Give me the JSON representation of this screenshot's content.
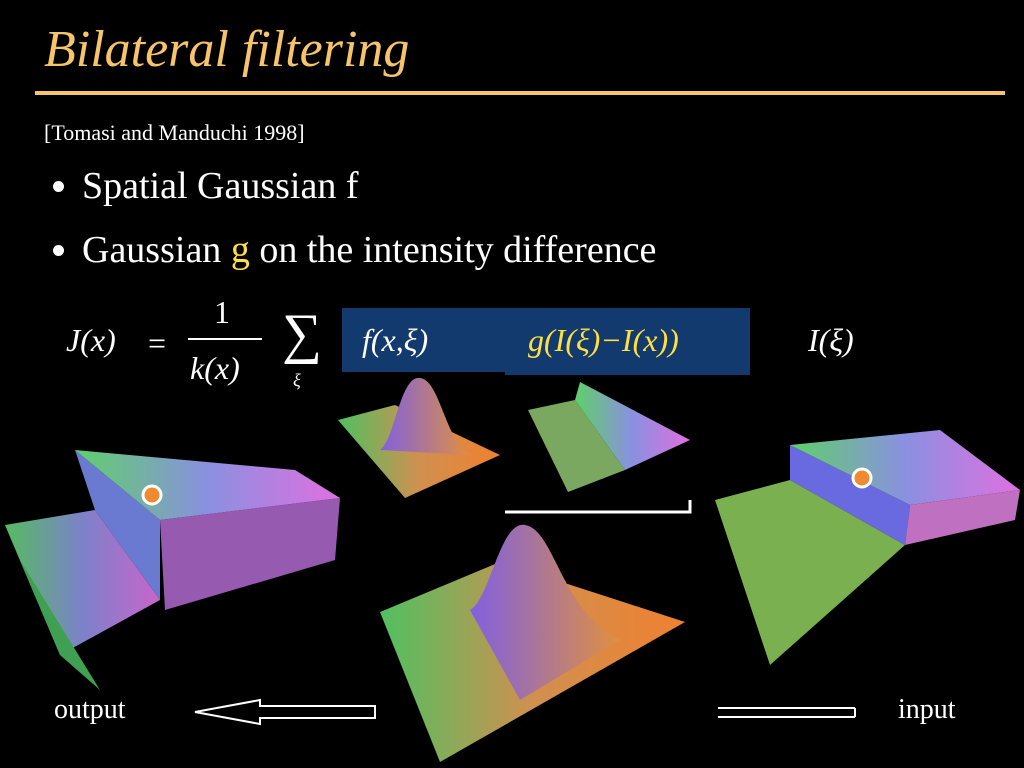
{
  "title": "Bilateral filtering",
  "citation": "[Tomasi and Manduchi 1998]",
  "bullets": [
    {
      "parts": [
        "Spatial Gaussian f"
      ]
    },
    {
      "parts": [
        "Gaussian ",
        "g",
        " on the intensity difference"
      ]
    }
  ],
  "formula": {
    "lhs": "J(x)",
    "equals": "=",
    "numerator": "1",
    "denominator": "k(x)",
    "sum": "∑",
    "sum_index": "ξ",
    "spatial": "f(x,ξ)",
    "range": "g(I(ξ)−I(x))",
    "input": "I(ξ)"
  },
  "labels": {
    "output": "output",
    "input": "input"
  }
}
